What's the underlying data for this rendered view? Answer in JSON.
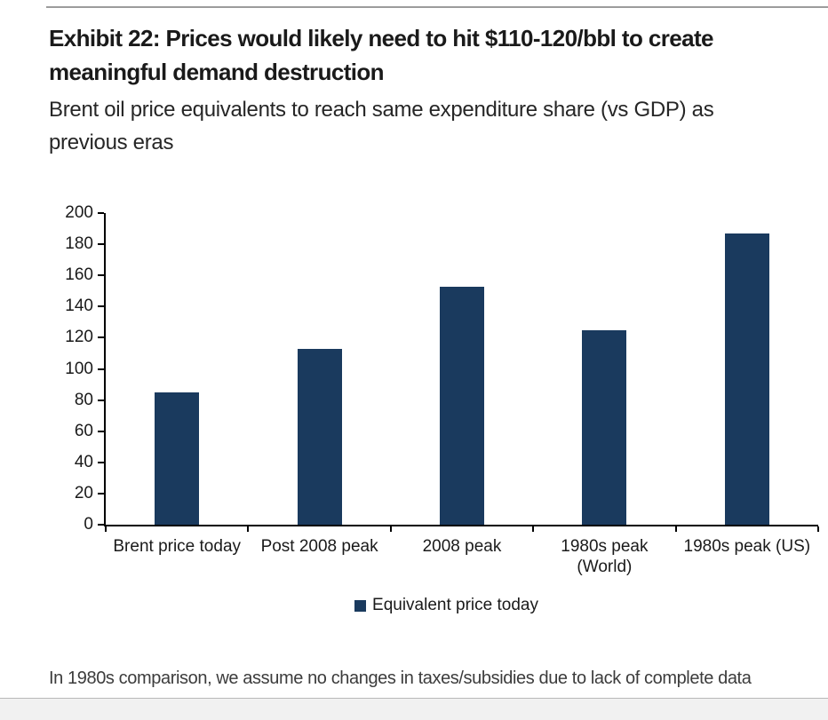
{
  "header": {
    "title_lines": [
      "Exhibit 22: Prices would likely need to hit $110-120/bbl to create",
      "meaningful demand destruction"
    ],
    "subtitle_lines": [
      "Brent oil price equivalents to reach same expenditure share (vs GDP) as",
      "previous eras"
    ]
  },
  "chart_data": {
    "type": "bar",
    "title": "Exhibit 22: Prices would likely need to hit $110-120/bbl to create meaningful demand destruction",
    "subtitle": "Brent oil price equivalents to reach same expenditure share (vs GDP) as previous eras",
    "categories": [
      "Brent price today",
      "Post 2008 peak",
      "2008 peak",
      "1980s peak (World)",
      "1980s peak (US)"
    ],
    "category_label_lines": [
      [
        "Brent price today"
      ],
      [
        "Post 2008 peak"
      ],
      [
        "2008 peak"
      ],
      [
        "1980s peak",
        "(World)"
      ],
      [
        "1980s peak (US)"
      ]
    ],
    "values": [
      85,
      113,
      153,
      125,
      187
    ],
    "xlabel": "",
    "ylabel": "",
    "ylim": [
      0,
      200
    ],
    "ytick_step": 20,
    "ytick_labels": [
      "0",
      "20",
      "40",
      "60",
      "80",
      "100",
      "120",
      "140",
      "160",
      "180",
      "200"
    ],
    "grid": false,
    "legend": [
      "Equivalent price today"
    ],
    "legend_position": "bottom",
    "bar_color": "#1a3a5e"
  },
  "footnote": "In 1980s comparison, we assume no changes in taxes/subsidies due to lack of complete data",
  "colors": {
    "bar": "#1a3a5e",
    "axis": "#000000",
    "title_text": "#1a1a1a",
    "subtitle_text": "#262626",
    "footnote_text": "#3c3c3c",
    "top_rule": "#9c9c9c",
    "bottom_rule": "#b8b8b8",
    "bottom_band": "#f1f1f1",
    "background": "#ffffff"
  }
}
